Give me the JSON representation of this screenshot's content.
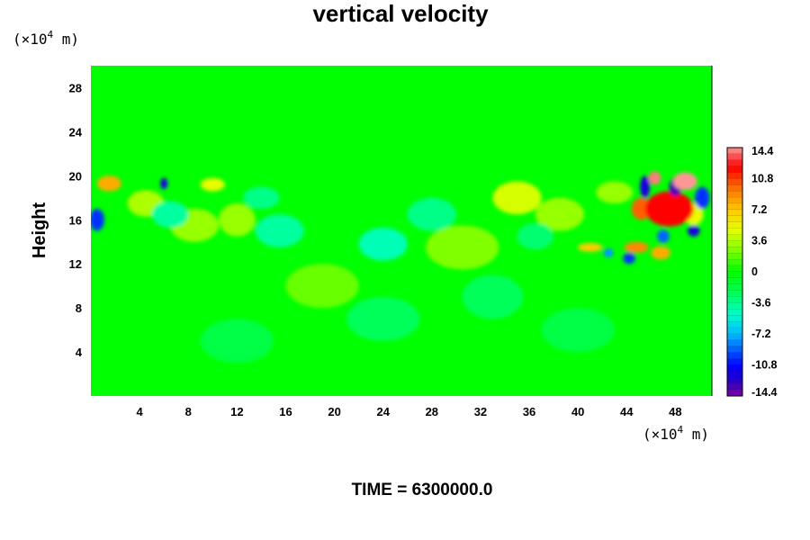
{
  "chart_data": {
    "type": "heatmap",
    "title": "vertical velocity",
    "ylabel": "Height",
    "xlabel": "",
    "x_unit": {
      "prefix": "(×10",
      "exp": "4",
      "suffix": " m)"
    },
    "y_unit": {
      "prefix": "(×10",
      "exp": "4",
      "suffix": " m)"
    },
    "xlim": [
      0,
      51
    ],
    "ylim": [
      0,
      30
    ],
    "x_ticks": [
      4,
      8,
      12,
      16,
      20,
      24,
      28,
      32,
      36,
      40,
      44,
      48
    ],
    "y_ticks": [
      4,
      8,
      12,
      16,
      20,
      24,
      28
    ],
    "colorbar": {
      "min": -14.4,
      "max": 14.4,
      "tick_labels": [
        "14.4",
        "10.8",
        "7.2",
        "3.6",
        "0",
        "-3.6",
        "-7.2",
        "-10.8",
        "-14.4"
      ],
      "tick_values": [
        14.4,
        10.8,
        7.2,
        3.6,
        0,
        -3.6,
        -7.2,
        -10.8,
        -14.4
      ]
    },
    "features": [
      {
        "x": 47.5,
        "y": 17.0,
        "value": 12.0,
        "rx": 2.0,
        "ry": 1.6
      },
      {
        "x": 48.8,
        "y": 19.5,
        "value": 14.4,
        "rx": 1.0,
        "ry": 0.8
      },
      {
        "x": 46.3,
        "y": 19.8,
        "value": 14.0,
        "rx": 0.5,
        "ry": 0.6
      },
      {
        "x": 45.2,
        "y": 17.0,
        "value": 10.0,
        "rx": 0.8,
        "ry": 1.0
      },
      {
        "x": 44.8,
        "y": 13.5,
        "value": 9.0,
        "rx": 1.0,
        "ry": 0.5
      },
      {
        "x": 46.8,
        "y": 13.0,
        "value": 8.0,
        "rx": 0.8,
        "ry": 0.6
      },
      {
        "x": 41.0,
        "y": 13.5,
        "value": 7.0,
        "rx": 1.0,
        "ry": 0.4
      },
      {
        "x": 1.5,
        "y": 19.3,
        "value": 8.0,
        "rx": 1.0,
        "ry": 0.7
      },
      {
        "x": 10.0,
        "y": 19.2,
        "value": 5.0,
        "rx": 1.0,
        "ry": 0.6
      },
      {
        "x": 35.0,
        "y": 18.0,
        "value": 4.5,
        "rx": 2.0,
        "ry": 1.5
      },
      {
        "x": 4.5,
        "y": 17.5,
        "value": 3.5,
        "rx": 1.5,
        "ry": 1.2
      },
      {
        "x": 8.5,
        "y": 15.5,
        "value": 3.0,
        "rx": 2.0,
        "ry": 1.5
      },
      {
        "x": 12.0,
        "y": 16.0,
        "value": 3.0,
        "rx": 1.5,
        "ry": 1.5
      },
      {
        "x": 38.5,
        "y": 16.5,
        "value": 3.0,
        "rx": 2.0,
        "ry": 1.5
      },
      {
        "x": 30.5,
        "y": 13.5,
        "value": 2.5,
        "rx": 3.0,
        "ry": 2.0
      },
      {
        "x": 19.0,
        "y": 10.0,
        "value": 2.0,
        "rx": 3.0,
        "ry": 2.0
      },
      {
        "x": 43.0,
        "y": 18.5,
        "value": 3.0,
        "rx": 1.5,
        "ry": 1.0
      },
      {
        "x": 49.5,
        "y": 16.5,
        "value": 5.0,
        "rx": 0.8,
        "ry": 1.0
      },
      {
        "x": 48.0,
        "y": 19.0,
        "value": -13.0,
        "rx": 0.5,
        "ry": 0.8
      },
      {
        "x": 45.5,
        "y": 19.0,
        "value": -12.0,
        "rx": 0.4,
        "ry": 1.0
      },
      {
        "x": 49.5,
        "y": 15.0,
        "value": -12.0,
        "rx": 0.5,
        "ry": 0.5
      },
      {
        "x": 50.2,
        "y": 18.0,
        "value": -10.0,
        "rx": 0.6,
        "ry": 1.0
      },
      {
        "x": 0.5,
        "y": 16.0,
        "value": -10.0,
        "rx": 0.6,
        "ry": 1.0
      },
      {
        "x": 6.0,
        "y": 19.3,
        "value": -12.0,
        "rx": 0.3,
        "ry": 0.5
      },
      {
        "x": 44.2,
        "y": 12.5,
        "value": -10.0,
        "rx": 0.5,
        "ry": 0.5
      },
      {
        "x": 47.0,
        "y": 14.5,
        "value": -9.0,
        "rx": 0.5,
        "ry": 0.6
      },
      {
        "x": 42.5,
        "y": 13.0,
        "value": -8.0,
        "rx": 0.4,
        "ry": 0.4
      },
      {
        "x": 24.0,
        "y": 13.8,
        "value": -4.5,
        "rx": 2.0,
        "ry": 1.5
      },
      {
        "x": 6.5,
        "y": 16.5,
        "value": -4.0,
        "rx": 1.5,
        "ry": 1.2
      },
      {
        "x": 15.5,
        "y": 15.0,
        "value": -4.0,
        "rx": 2.0,
        "ry": 1.5
      },
      {
        "x": 28.0,
        "y": 16.5,
        "value": -3.5,
        "rx": 2.0,
        "ry": 1.5
      },
      {
        "x": 14.0,
        "y": 18.0,
        "value": -3.5,
        "rx": 1.5,
        "ry": 1.0
      },
      {
        "x": 24.0,
        "y": 7.0,
        "value": -2.5,
        "rx": 3.0,
        "ry": 2.0
      },
      {
        "x": 12.0,
        "y": 5.0,
        "value": -2.0,
        "rx": 3.0,
        "ry": 2.0
      },
      {
        "x": 33.0,
        "y": 9.0,
        "value": -2.5,
        "rx": 2.5,
        "ry": 2.0
      },
      {
        "x": 40.0,
        "y": 6.0,
        "value": -2.0,
        "rx": 3.0,
        "ry": 2.0
      },
      {
        "x": 36.5,
        "y": 14.5,
        "value": -3.0,
        "rx": 1.5,
        "ry": 1.2
      }
    ]
  },
  "time_label": "TIME = 6300000.0"
}
